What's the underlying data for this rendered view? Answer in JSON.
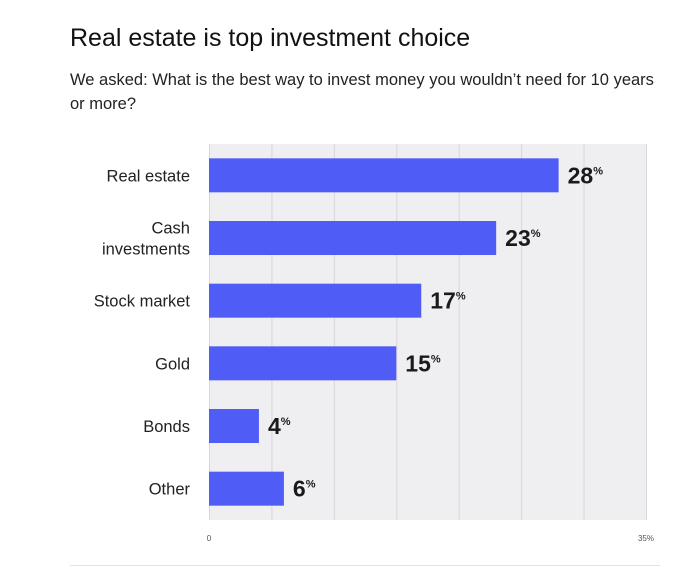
{
  "header": {
    "title": "Real estate is top investment choice",
    "subtitle": "We asked: What is the best way to invest money you wouldn’t need for 10 years or more?"
  },
  "colors": {
    "bar": "#4f5cf5",
    "plot_bg": "#efeff1",
    "grid": "#d7d7db"
  },
  "chart_data": {
    "type": "bar",
    "orientation": "horizontal",
    "categories": [
      [
        "Real estate"
      ],
      [
        "Cash",
        "investments"
      ],
      [
        "Stock market"
      ],
      [
        "Gold"
      ],
      [
        "Bonds"
      ],
      [
        "Other"
      ]
    ],
    "values": [
      28,
      23,
      17,
      15,
      4,
      6
    ],
    "value_suffix": "%",
    "xlim": [
      0,
      35
    ],
    "xticks": [
      "0",
      "35%"
    ],
    "grid": true
  }
}
